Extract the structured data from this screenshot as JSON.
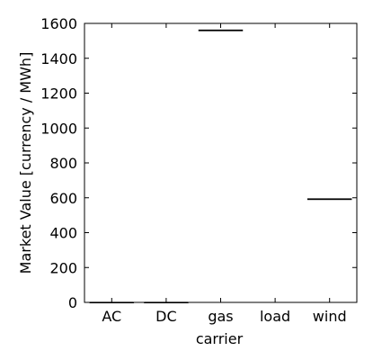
{
  "chart_data": {
    "type": "box",
    "title": "",
    "xlabel": "carrier",
    "ylabel": "Market Value [currency / MWh]",
    "categories": [
      "AC",
      "DC",
      "gas",
      "load",
      "wind"
    ],
    "boxes": [
      {
        "category": "AC",
        "min": 0,
        "q1": 0,
        "median": 0,
        "q3": 0,
        "max": 0
      },
      {
        "category": "DC",
        "min": 0,
        "q1": 0,
        "median": 0,
        "q3": 0,
        "max": 0
      },
      {
        "category": "gas",
        "min": 1558,
        "q1": 1558,
        "median": 1560,
        "q3": 1562,
        "max": 1562
      },
      {
        "category": "load",
        "min": null,
        "q1": null,
        "median": null,
        "q3": null,
        "max": null
      },
      {
        "category": "wind",
        "min": 590,
        "q1": 590,
        "median": 592,
        "q3": 594,
        "max": 594
      }
    ],
    "yticks": [
      0,
      200,
      400,
      600,
      800,
      1000,
      1200,
      1400,
      1600
    ],
    "ylim": [
      0,
      1600
    ],
    "grid": false,
    "legend": "none",
    "colors": {
      "box_edge": "#000000",
      "axis": "#000000"
    }
  }
}
